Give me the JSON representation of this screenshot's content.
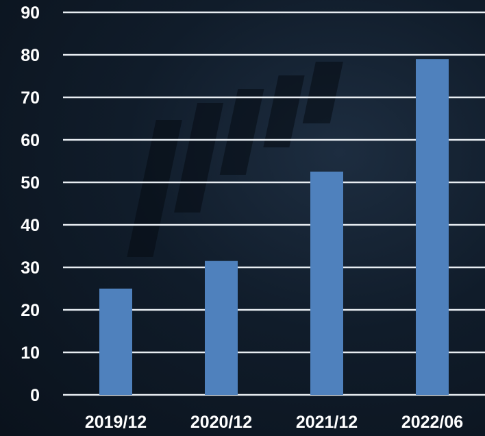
{
  "chart_data": {
    "type": "bar",
    "categories": [
      "2019/12",
      "2020/12",
      "2021/12",
      "2022/06"
    ],
    "values": [
      25,
      31.5,
      52.5,
      79
    ],
    "title": "",
    "xlabel": "",
    "ylabel": "",
    "ylim": [
      0,
      90
    ],
    "yticks": [
      0,
      10,
      20,
      30,
      40,
      50,
      60,
      70,
      80,
      90
    ],
    "grid": true,
    "legend": "none",
    "bar_color": "#4f81bd",
    "background_color": "#0c1622",
    "grid_color": "#e8edf2",
    "text_color": "#ffffff"
  }
}
